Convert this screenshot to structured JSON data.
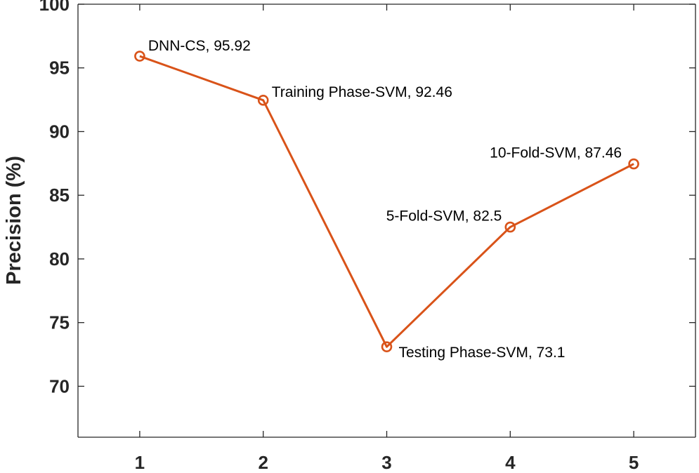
{
  "chart_data": {
    "type": "line",
    "title": "",
    "xlabel": "",
    "ylabel": "Precision (%)",
    "x": [
      1,
      2,
      3,
      4,
      5
    ],
    "xticks": [
      "1",
      "2",
      "3",
      "4",
      "5"
    ],
    "yticks": [
      "70",
      "75",
      "80",
      "85",
      "90",
      "95",
      "100"
    ],
    "xlim": [
      0.5,
      5.5
    ],
    "ylim": [
      66,
      100
    ],
    "grid": false,
    "series": [
      {
        "name": "Precision",
        "color": "#D95319",
        "marker": "circle",
        "values": [
          95.92,
          92.46,
          73.1,
          82.5,
          87.46
        ],
        "labels": [
          "DNN-CS, 95.92",
          "Training Phase-SVM, 92.46",
          "Testing Phase-SVM, 73.1",
          "5-Fold-SVM, 82.5",
          "10-Fold-SVM, 87.46"
        ]
      }
    ]
  }
}
